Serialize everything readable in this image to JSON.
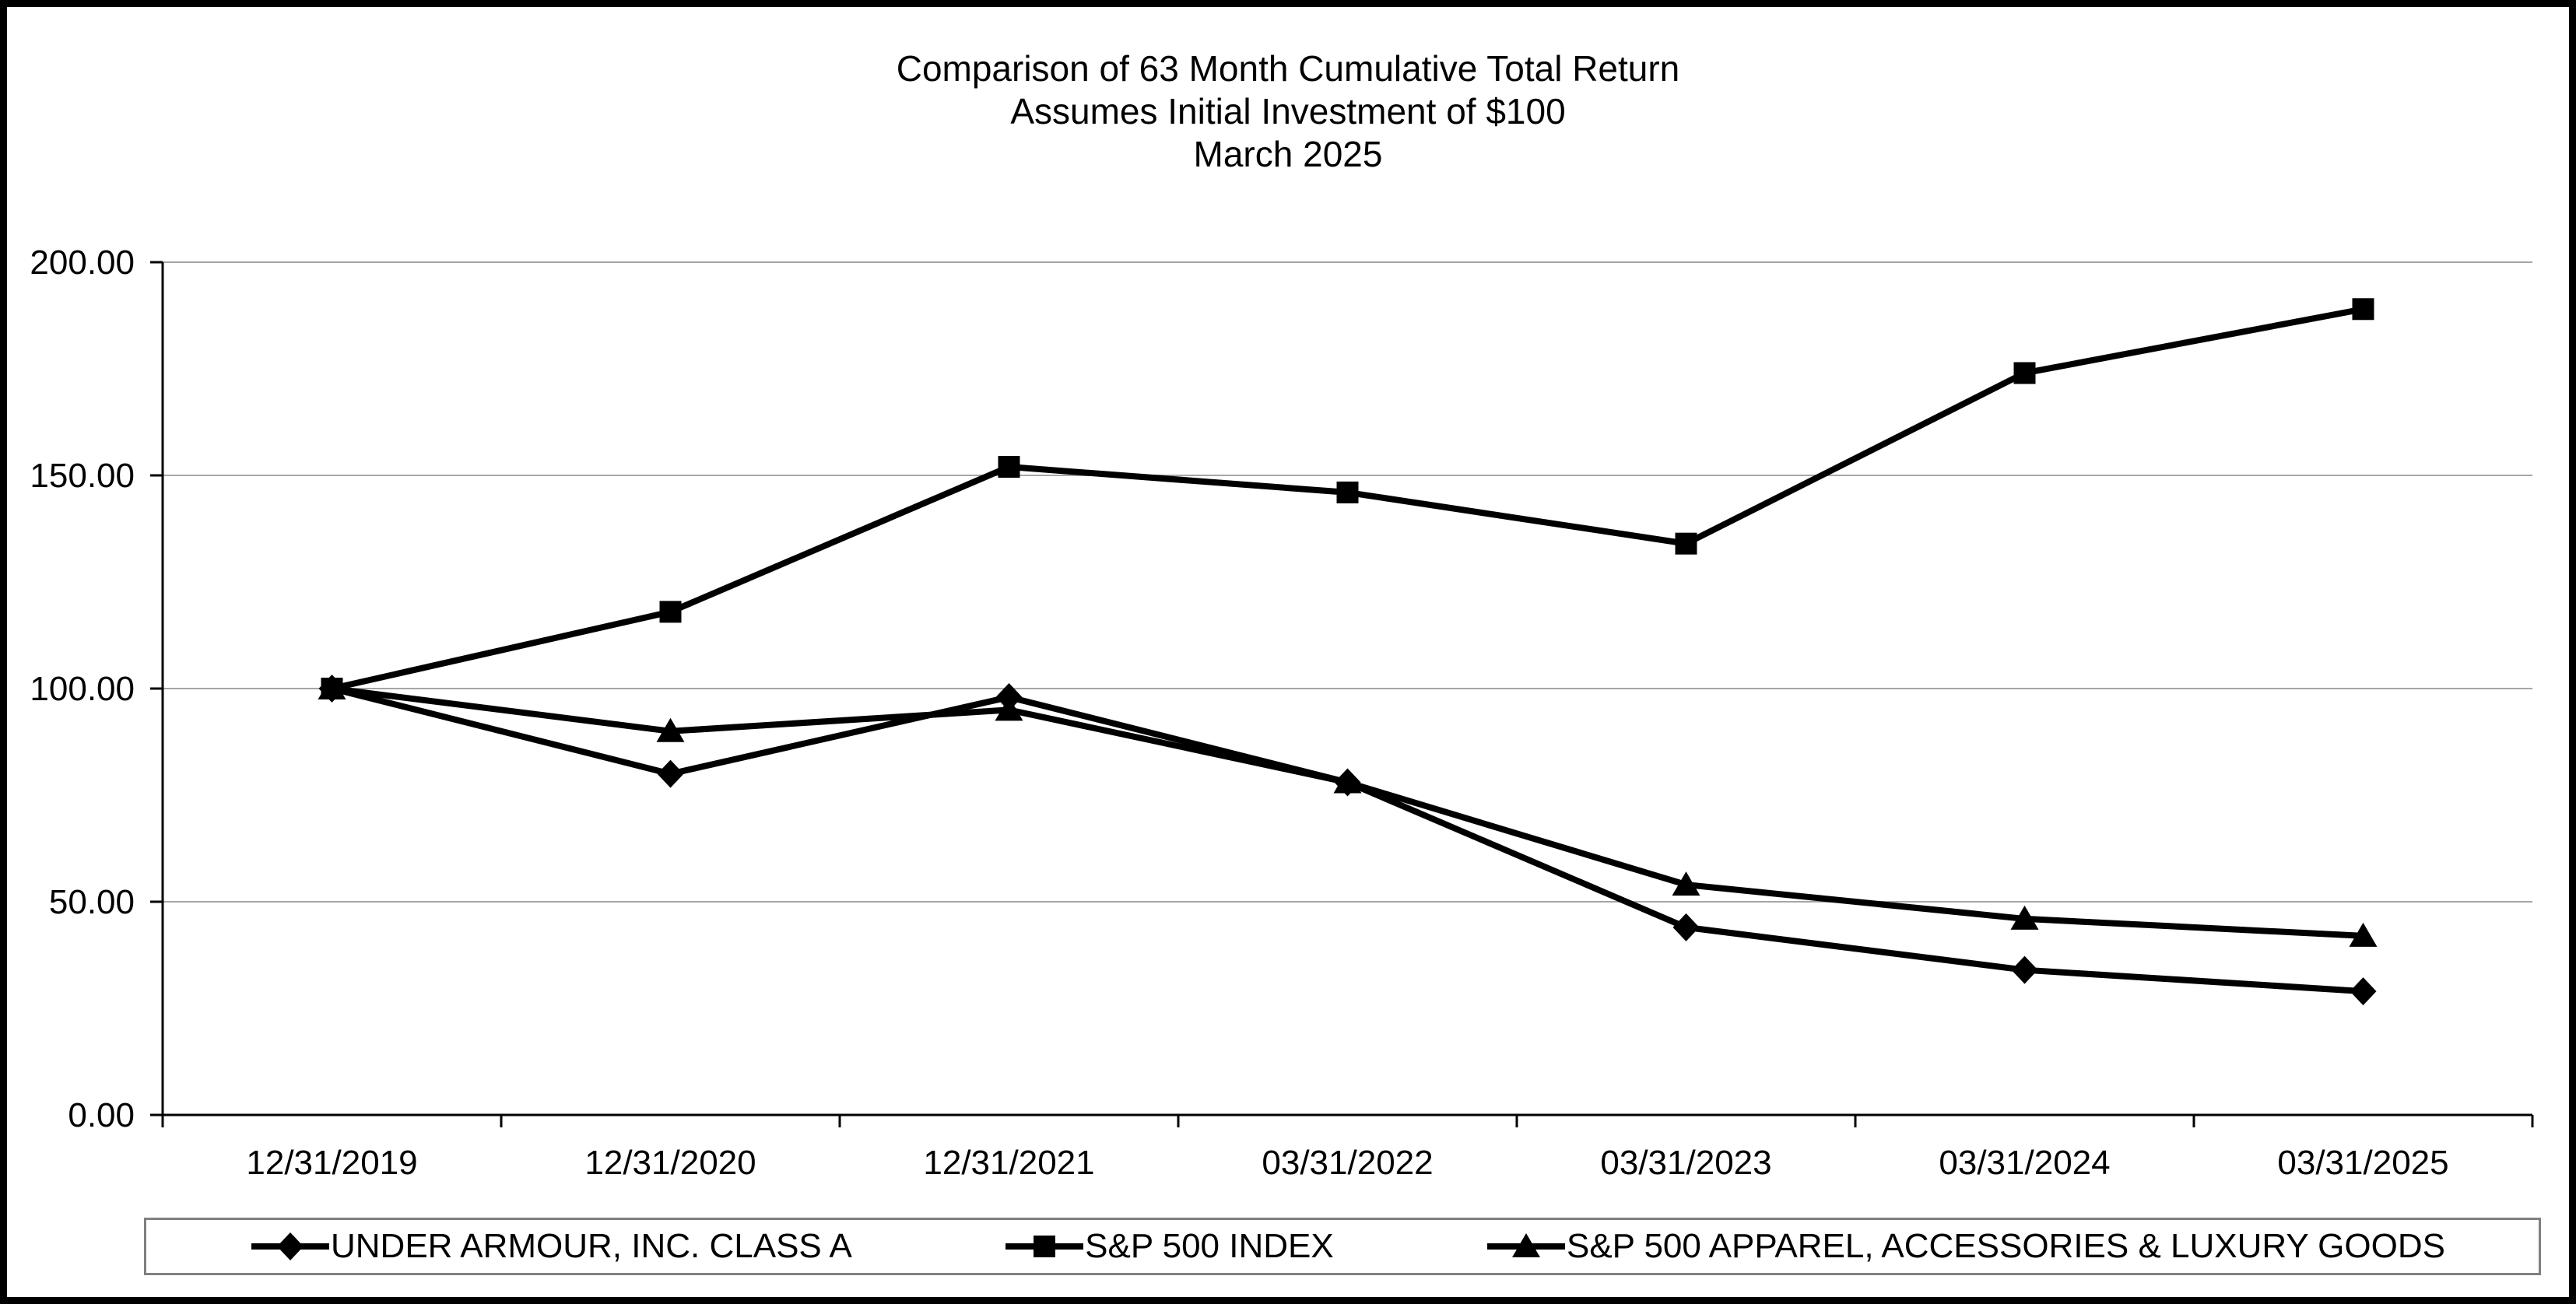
{
  "chart_data": {
    "type": "line",
    "title": "Comparison of 63 Month Cumulative Total Return",
    "subtitle": "Assumes Initial Investment of $100",
    "period_label": "March 2025",
    "categories": [
      "12/31/2019",
      "12/31/2020",
      "12/31/2021",
      "03/31/2022",
      "03/31/2023",
      "03/31/2024",
      "03/31/2025"
    ],
    "y_ticks": [
      "0.00",
      "50.00",
      "100.00",
      "150.00",
      "200.00"
    ],
    "ylim": [
      0,
      200
    ],
    "xlabel": "",
    "ylabel": "",
    "grid": "horizontal",
    "legend_position": "bottom",
    "line_color": "#000000",
    "gridline_color": "#a6a6a6",
    "series": [
      {
        "name": "UNDER ARMOUR, INC. CLASS A",
        "marker": "diamond-icon",
        "values": [
          100.0,
          80.0,
          98.0,
          78.0,
          44.0,
          34.0,
          29.0
        ]
      },
      {
        "name": "S&P 500 INDEX",
        "marker": "square-icon",
        "values": [
          100.0,
          118.0,
          152.0,
          146.0,
          134.0,
          174.0,
          189.0
        ]
      },
      {
        "name": "S&P 500 APPAREL, ACCESSORIES & LUXURY GOODS",
        "marker": "triangle-icon",
        "values": [
          100.0,
          90.0,
          95.0,
          78.0,
          54.0,
          46.0,
          42.0
        ]
      }
    ]
  }
}
